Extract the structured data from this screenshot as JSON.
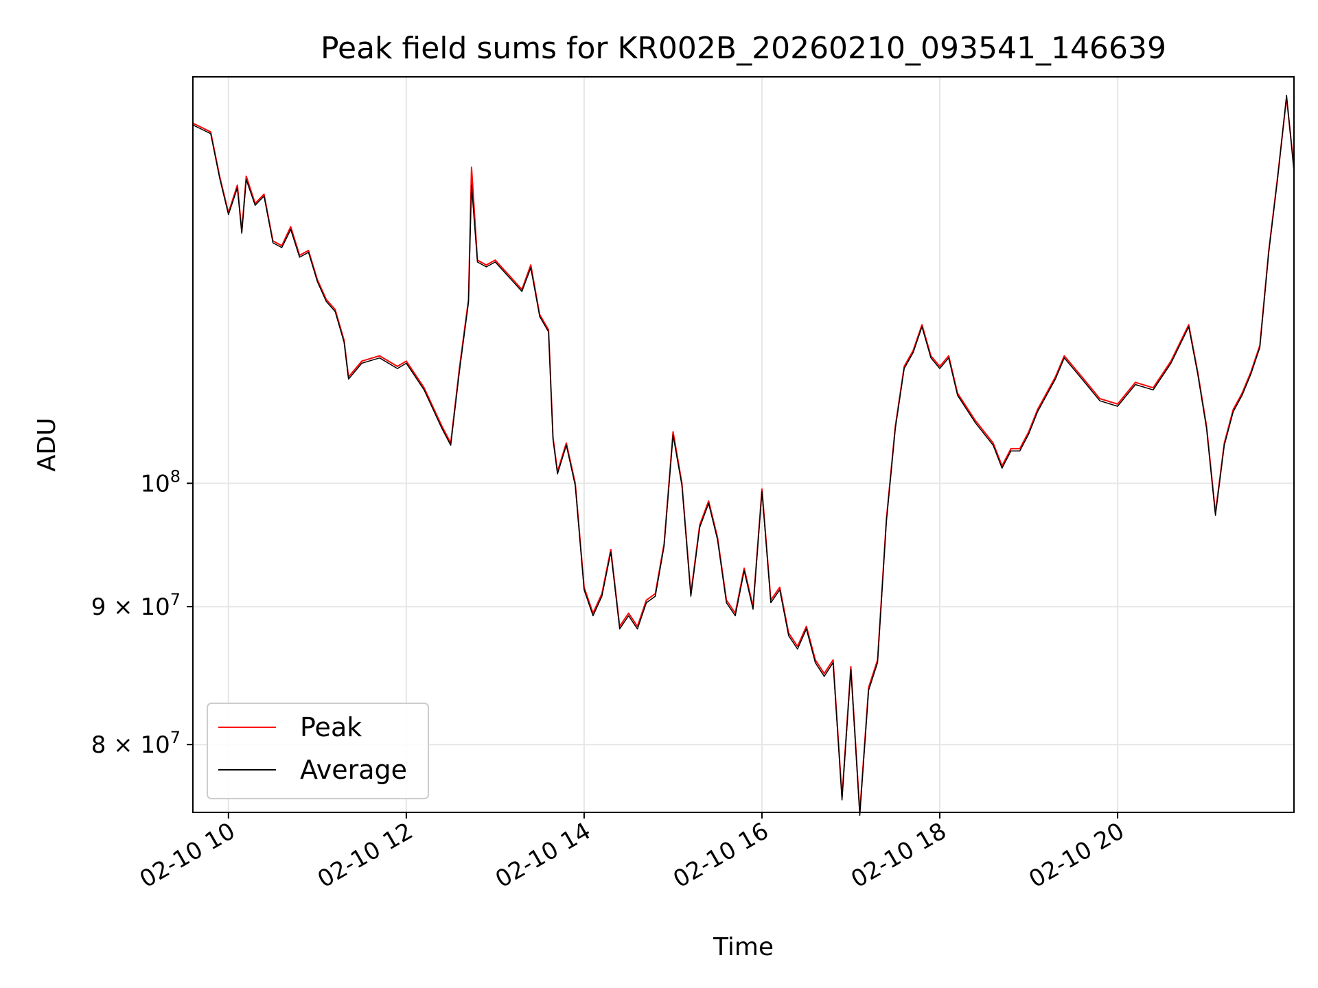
{
  "chart_data": {
    "type": "line",
    "title": "Peak field sums for KR002B_20260210_093541_146639",
    "xlabel": "Time",
    "ylabel": "ADU",
    "y_scale": "log",
    "xlim": [
      "02-10 09:36",
      "02-10 21:59"
    ],
    "ylim": [
      75500000,
      141500000
    ],
    "grid": true,
    "legend_placement": "lower-left",
    "x_ticks": [
      {
        "value": "02-10 10:00",
        "label": "02-10 10"
      },
      {
        "value": "02-10 12:00",
        "label": "02-10 12"
      },
      {
        "value": "02-10 14:00",
        "label": "02-10 14"
      },
      {
        "value": "02-10 16:00",
        "label": "02-10 16"
      },
      {
        "value": "02-10 18:00",
        "label": "02-10 18"
      },
      {
        "value": "02-10 20:00",
        "label": "02-10 20"
      }
    ],
    "y_ticks": [
      {
        "value": 80000000,
        "label_mantissa": "8",
        "label_base": "10",
        "label_exp": "7"
      },
      {
        "value": 90000000,
        "label_mantissa": "9",
        "label_base": "10",
        "label_exp": "7"
      },
      {
        "value": 100000000,
        "label_mantissa": "",
        "label_base": "10",
        "label_exp": "8"
      }
    ],
    "series": [
      {
        "name": "Peak",
        "color": "#ff0000",
        "x": [
          "02-10 09:36",
          "02-10 09:42",
          "02-10 09:48",
          "02-10 09:54",
          "02-10 10:00",
          "02-10 10:06",
          "02-10 10:09",
          "02-10 10:12",
          "02-10 10:18",
          "02-10 10:24",
          "02-10 10:30",
          "02-10 10:36",
          "02-10 10:42",
          "02-10 10:48",
          "02-10 10:54",
          "02-10 11:00",
          "02-10 11:06",
          "02-10 11:12",
          "02-10 11:18",
          "02-10 11:21",
          "02-10 11:30",
          "02-10 11:42",
          "02-10 11:54",
          "02-10 12:00",
          "02-10 12:12",
          "02-10 12:24",
          "02-10 12:30",
          "02-10 12:36",
          "02-10 12:42",
          "02-10 12:44",
          "02-10 12:48",
          "02-10 12:54",
          "02-10 13:00",
          "02-10 13:12",
          "02-10 13:18",
          "02-10 13:24",
          "02-10 13:30",
          "02-10 13:36",
          "02-10 13:39",
          "02-10 13:42",
          "02-10 13:48",
          "02-10 13:54",
          "02-10 14:00",
          "02-10 14:06",
          "02-10 14:12",
          "02-10 14:18",
          "02-10 14:24",
          "02-10 14:30",
          "02-10 14:36",
          "02-10 14:42",
          "02-10 14:48",
          "02-10 14:54",
          "02-10 15:00",
          "02-10 15:06",
          "02-10 15:12",
          "02-10 15:18",
          "02-10 15:24",
          "02-10 15:30",
          "02-10 15:36",
          "02-10 15:42",
          "02-10 15:48",
          "02-10 15:54",
          "02-10 16:00",
          "02-10 16:06",
          "02-10 16:12",
          "02-10 16:18",
          "02-10 16:24",
          "02-10 16:30",
          "02-10 16:36",
          "02-10 16:42",
          "02-10 16:48",
          "02-10 16:54",
          "02-10 17:00",
          "02-10 17:06",
          "02-10 17:12",
          "02-10 17:18",
          "02-10 17:24",
          "02-10 17:30",
          "02-10 17:36",
          "02-10 17:42",
          "02-10 17:48",
          "02-10 17:54",
          "02-10 18:00",
          "02-10 18:06",
          "02-10 18:12",
          "02-10 18:24",
          "02-10 18:36",
          "02-10 18:42",
          "02-10 18:48",
          "02-10 18:54",
          "02-10 19:00",
          "02-10 19:06",
          "02-10 19:12",
          "02-10 19:18",
          "02-10 19:24",
          "02-10 19:36",
          "02-10 19:48",
          "02-10 20:00",
          "02-10 20:12",
          "02-10 20:24",
          "02-10 20:36",
          "02-10 20:48",
          "02-10 20:54",
          "02-10 21:00",
          "02-10 21:06",
          "02-10 21:12",
          "02-10 21:18",
          "02-10 21:24",
          "02-10 21:30",
          "02-10 21:36",
          "02-10 21:42",
          "02-10 21:48",
          "02-10 21:54",
          "02-10 21:59"
        ],
        "values": [
          136000000,
          135500000,
          135000000,
          130000000,
          126000000,
          129000000,
          124000000,
          130000000,
          127000000,
          128000000,
          123000000,
          122500000,
          124500000,
          121500000,
          122000000,
          119000000,
          117000000,
          116000000,
          113000000,
          109500000,
          111000000,
          111500000,
          110500000,
          111000000,
          108500000,
          105000000,
          103500000,
          110500000,
          117000000,
          131000000,
          121000000,
          120500000,
          121000000,
          119000000,
          118000000,
          120500000,
          115500000,
          114000000,
          104000000,
          101000000,
          103500000,
          100000000,
          91500000,
          89500000,
          91000000,
          94500000,
          88500000,
          89500000,
          88500000,
          90500000,
          91000000,
          95000000,
          104500000,
          100000000,
          91000000,
          96500000,
          98500000,
          95500000,
          90500000,
          89500000,
          93000000,
          90000000,
          99500000,
          90500000,
          91500000,
          88000000,
          87000000,
          88500000,
          86000000,
          85000000,
          86000000,
          76500000,
          85500000,
          75500000,
          84000000,
          86000000,
          97000000,
          105000000,
          110500000,
          112000000,
          114500000,
          111500000,
          110500000,
          111500000,
          108000000,
          105500000,
          103500000,
          101500000,
          103000000,
          103000000,
          104500000,
          106500000,
          108000000,
          109500000,
          111500000,
          109500000,
          107500000,
          107000000,
          109000000,
          108500000,
          111000000,
          114500000,
          110000000,
          105000000,
          97500000,
          103500000,
          106500000,
          108000000,
          110000000,
          112500000,
          122000000,
          130000000,
          139000000,
          131000000
        ]
      },
      {
        "name": "Average",
        "color": "#000000",
        "x": [
          "02-10 09:36",
          "02-10 09:42",
          "02-10 09:48",
          "02-10 09:54",
          "02-10 10:00",
          "02-10 10:06",
          "02-10 10:09",
          "02-10 10:12",
          "02-10 10:18",
          "02-10 10:24",
          "02-10 10:30",
          "02-10 10:36",
          "02-10 10:42",
          "02-10 10:48",
          "02-10 10:54",
          "02-10 11:00",
          "02-10 11:06",
          "02-10 11:12",
          "02-10 11:18",
          "02-10 11:21",
          "02-10 11:30",
          "02-10 11:42",
          "02-10 11:54",
          "02-10 12:00",
          "02-10 12:12",
          "02-10 12:24",
          "02-10 12:30",
          "02-10 12:36",
          "02-10 12:42",
          "02-10 12:44",
          "02-10 12:48",
          "02-10 12:54",
          "02-10 13:00",
          "02-10 13:12",
          "02-10 13:18",
          "02-10 13:24",
          "02-10 13:30",
          "02-10 13:36",
          "02-10 13:39",
          "02-10 13:42",
          "02-10 13:48",
          "02-10 13:54",
          "02-10 14:00",
          "02-10 14:06",
          "02-10 14:12",
          "02-10 14:18",
          "02-10 14:24",
          "02-10 14:30",
          "02-10 14:36",
          "02-10 14:42",
          "02-10 14:48",
          "02-10 14:54",
          "02-10 15:00",
          "02-10 15:06",
          "02-10 15:12",
          "02-10 15:18",
          "02-10 15:24",
          "02-10 15:30",
          "02-10 15:36",
          "02-10 15:42",
          "02-10 15:48",
          "02-10 15:54",
          "02-10 16:00",
          "02-10 16:06",
          "02-10 16:12",
          "02-10 16:18",
          "02-10 16:24",
          "02-10 16:30",
          "02-10 16:36",
          "02-10 16:42",
          "02-10 16:48",
          "02-10 16:54",
          "02-10 17:00",
          "02-10 17:06",
          "02-10 17:12",
          "02-10 17:18",
          "02-10 17:24",
          "02-10 17:30",
          "02-10 17:36",
          "02-10 17:42",
          "02-10 17:48",
          "02-10 17:54",
          "02-10 18:00",
          "02-10 18:06",
          "02-10 18:12",
          "02-10 18:24",
          "02-10 18:36",
          "02-10 18:42",
          "02-10 18:48",
          "02-10 18:54",
          "02-10 19:00",
          "02-10 19:06",
          "02-10 19:12",
          "02-10 19:18",
          "02-10 19:24",
          "02-10 19:36",
          "02-10 19:48",
          "02-10 20:00",
          "02-10 20:12",
          "02-10 20:24",
          "02-10 20:36",
          "02-10 20:48",
          "02-10 20:54",
          "02-10 21:00",
          "02-10 21:06",
          "02-10 21:12",
          "02-10 21:18",
          "02-10 21:24",
          "02-10 21:30",
          "02-10 21:36",
          "02-10 21:42",
          "02-10 21:48",
          "02-10 21:54",
          "02-10 21:59"
        ],
        "values": [
          135800000,
          135300000,
          134800000,
          129800000,
          125800000,
          128700000,
          123800000,
          129600000,
          126800000,
          127800000,
          122800000,
          122300000,
          124200000,
          121300000,
          121800000,
          118800000,
          116800000,
          115800000,
          112800000,
          109300000,
          110800000,
          111300000,
          110300000,
          110800000,
          108300000,
          104800000,
          103300000,
          110200000,
          116700000,
          129000000,
          120800000,
          120300000,
          120800000,
          118800000,
          117800000,
          120200000,
          115300000,
          113800000,
          103800000,
          100800000,
          103300000,
          99800000,
          91300000,
          89300000,
          90800000,
          94300000,
          88300000,
          89300000,
          88300000,
          90300000,
          90800000,
          94800000,
          104200000,
          99800000,
          90800000,
          96300000,
          98300000,
          95300000,
          90300000,
          89300000,
          92800000,
          89800000,
          99300000,
          90300000,
          91300000,
          87800000,
          86800000,
          88300000,
          85800000,
          84800000,
          85800000,
          76300000,
          85300000,
          75300000,
          83800000,
          85800000,
          96800000,
          104800000,
          110300000,
          111800000,
          114300000,
          111300000,
          110300000,
          111300000,
          107800000,
          105300000,
          103300000,
          101300000,
          102800000,
          102800000,
          104300000,
          106300000,
          107800000,
          109300000,
          111300000,
          109300000,
          107300000,
          106800000,
          108800000,
          108300000,
          110800000,
          114300000,
          109800000,
          104800000,
          97300000,
          103300000,
          106300000,
          107800000,
          109800000,
          112300000,
          121800000,
          129800000,
          139300000,
          130500000
        ]
      }
    ]
  }
}
